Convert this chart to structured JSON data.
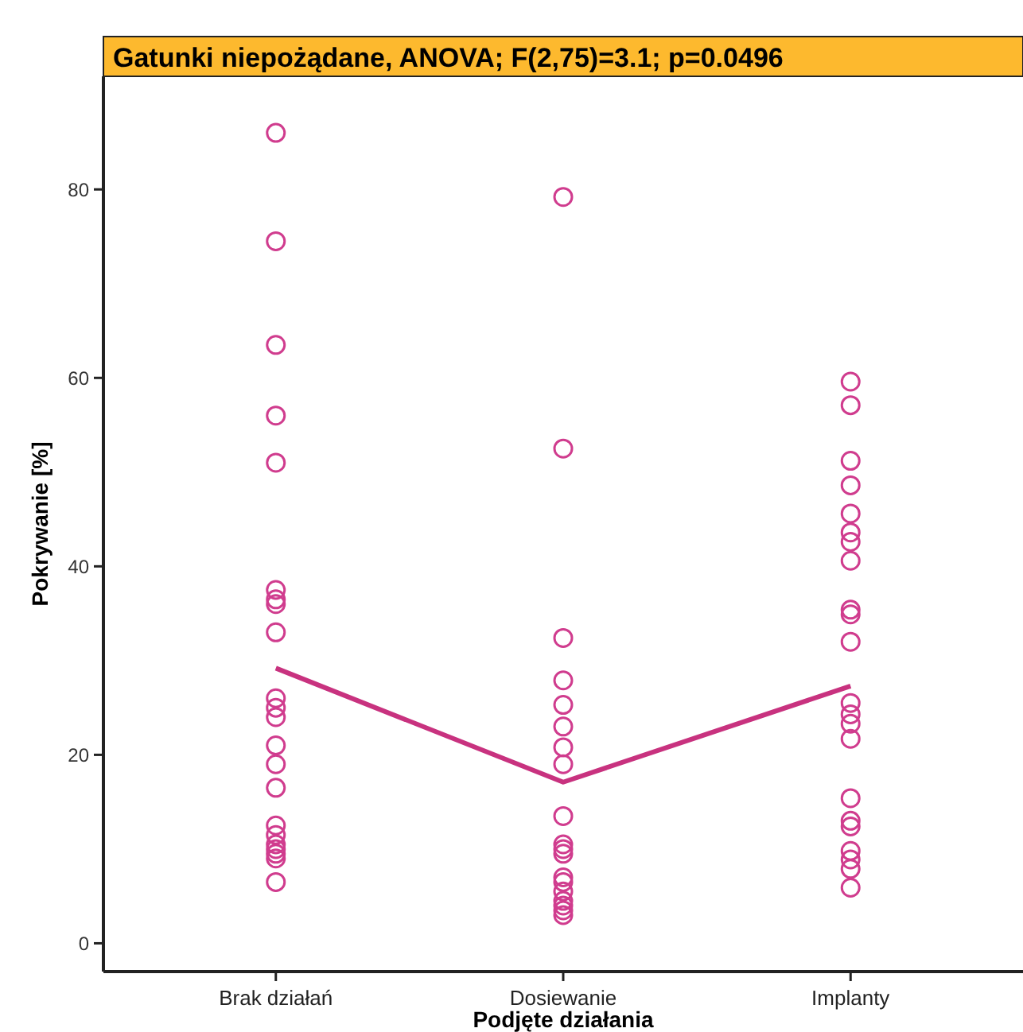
{
  "chart_data": {
    "type": "scatter",
    "title": "Gatunki niepożądane, ANOVA; F(2,75)=3.1; p=0.0496",
    "xlabel": "Podjęte działania",
    "ylabel": "Pokrywanie [%]",
    "categories": [
      "Brak działań",
      "Dosiewanie",
      "Implanty"
    ],
    "ylim": [
      -3,
      92
    ],
    "yticks": [
      0,
      20,
      40,
      60,
      80
    ],
    "grid": false,
    "marker": "circle",
    "series": [
      {
        "color": "#d03c8e",
        "x": [
          "Brak działań",
          "Brak działań",
          "Brak działań",
          "Brak działań",
          "Brak działań",
          "Brak działań",
          "Brak działań",
          "Brak działań",
          "Brak działań",
          "Brak działań",
          "Brak działań",
          "Brak działań",
          "Brak działań",
          "Brak działań",
          "Brak działań",
          "Brak działań",
          "Brak działań",
          "Brak działań",
          "Brak działań",
          "Brak działań",
          "Brak działań",
          "Brak działań"
        ],
        "values": [
          86,
          74.5,
          63.5,
          56,
          51,
          37.5,
          36.5,
          36,
          33,
          26,
          25,
          24,
          21,
          19,
          16.5,
          12.5,
          11.5,
          10.5,
          10,
          9.5,
          9,
          6.5
        ]
      },
      {
        "color": "#d03c8e",
        "x": [
          "Dosiewanie",
          "Dosiewanie",
          "Dosiewanie",
          "Dosiewanie",
          "Dosiewanie",
          "Dosiewanie",
          "Dosiewanie",
          "Dosiewanie",
          "Dosiewanie",
          "Dosiewanie",
          "Dosiewanie",
          "Dosiewanie",
          "Dosiewanie",
          "Dosiewanie",
          "Dosiewanie",
          "Dosiewanie",
          "Dosiewanie",
          "Dosiewanie",
          "Dosiewanie"
        ],
        "values": [
          79.2,
          52.5,
          32.4,
          27.9,
          25.3,
          23,
          20.8,
          19,
          13.5,
          10.5,
          10,
          9.5,
          7,
          6.5,
          5.5,
          4.5,
          4,
          3.5,
          3
        ]
      },
      {
        "color": "#d03c8e",
        "x": [
          "Implanty",
          "Implanty",
          "Implanty",
          "Implanty",
          "Implanty",
          "Implanty",
          "Implanty",
          "Implanty",
          "Implanty",
          "Implanty",
          "Implanty",
          "Implanty",
          "Implanty",
          "Implanty",
          "Implanty",
          "Implanty",
          "Implanty",
          "Implanty",
          "Implanty",
          "Implanty",
          "Implanty",
          "Implanty"
        ],
        "values": [
          59.6,
          57.1,
          51.2,
          48.6,
          45.6,
          43.6,
          42.6,
          40.6,
          35.4,
          34.9,
          32,
          25.5,
          24.3,
          23.3,
          21.7,
          15.4,
          13,
          12.4,
          9.8,
          8.9,
          7.9,
          5.9
        ]
      },
      {
        "type": "line",
        "color": "#c8327f",
        "marker": "none",
        "values": [
          29.2,
          17.1,
          27.3
        ]
      }
    ]
  }
}
